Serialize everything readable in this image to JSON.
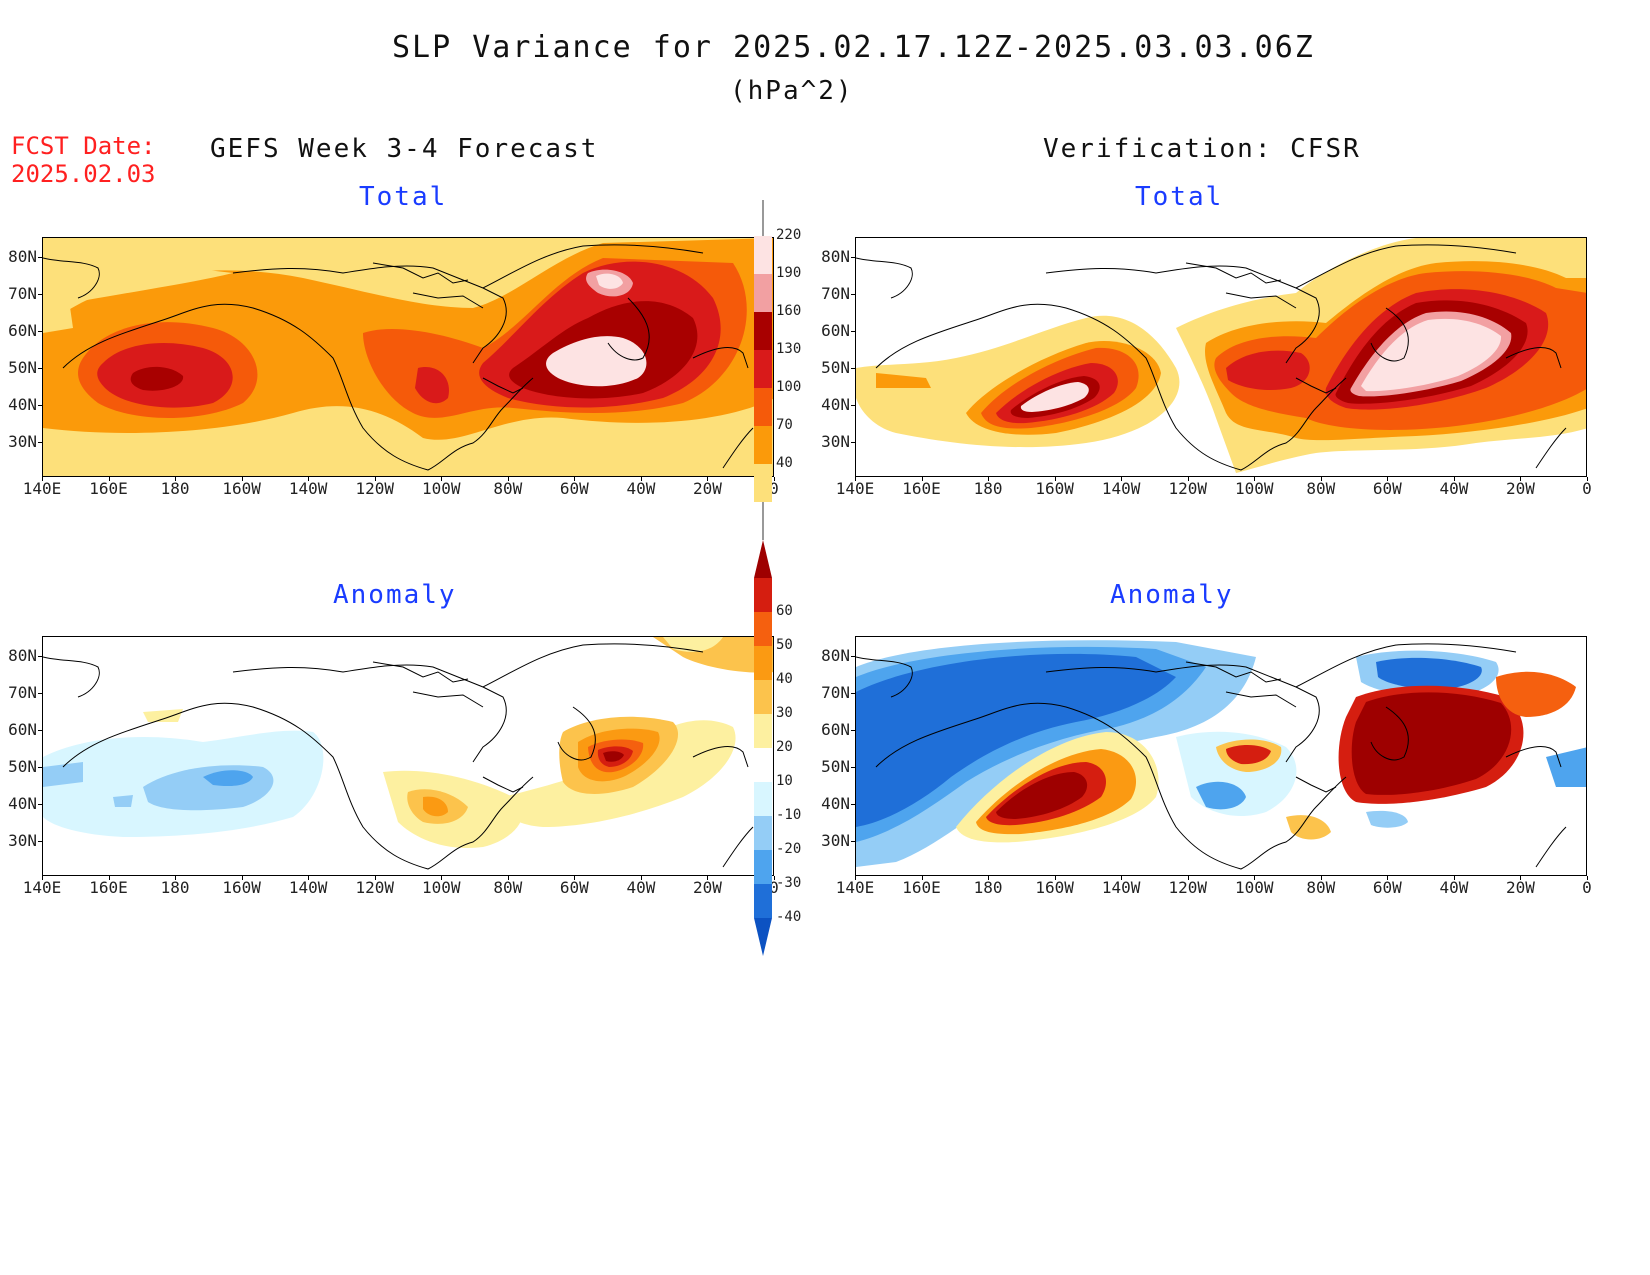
{
  "header": {
    "title": "SLP Variance for 2025.02.17.12Z-2025.03.03.06Z",
    "units": "(hPa^2)",
    "fcst_label": "FCST Date:",
    "fcst_date": "2025.02.03"
  },
  "columns": {
    "left": "GEFS Week 3-4 Forecast",
    "right": "Verification: CFSR"
  },
  "panels": {
    "total_title": "Total",
    "anomaly_title": "Anomaly"
  },
  "axes": {
    "lat_labels": [
      "80N",
      "70N",
      "60N",
      "50N",
      "40N",
      "30N"
    ],
    "lon_labels": [
      "140E",
      "160E",
      "180",
      "160W",
      "140W",
      "120W",
      "100W",
      "80W",
      "60W",
      "40W",
      "20W",
      "0"
    ]
  },
  "colorbars": {
    "total": {
      "levels": [
        "220",
        "190",
        "160",
        "130",
        "100",
        "70",
        "40"
      ],
      "colors": [
        "#fde3e3",
        "#f2a0a2",
        "#a80000",
        "#d91a1a",
        "#f55a0a",
        "#fb9a0a",
        "#fde07a"
      ]
    },
    "anomaly": {
      "levels": [
        "60",
        "50",
        "40",
        "30",
        "20",
        "10",
        "-10",
        "-20",
        "-30",
        "-40"
      ],
      "colors": [
        "#9e0000",
        "#d51e10",
        "#f5600f",
        "#fb9a12",
        "#fcc34c",
        "#fdf0a0",
        "#ffffff",
        "#d8f6ff",
        "#94cdf6",
        "#4ea4ee",
        "#1f6fd8",
        "#0c52c2"
      ]
    }
  }
}
